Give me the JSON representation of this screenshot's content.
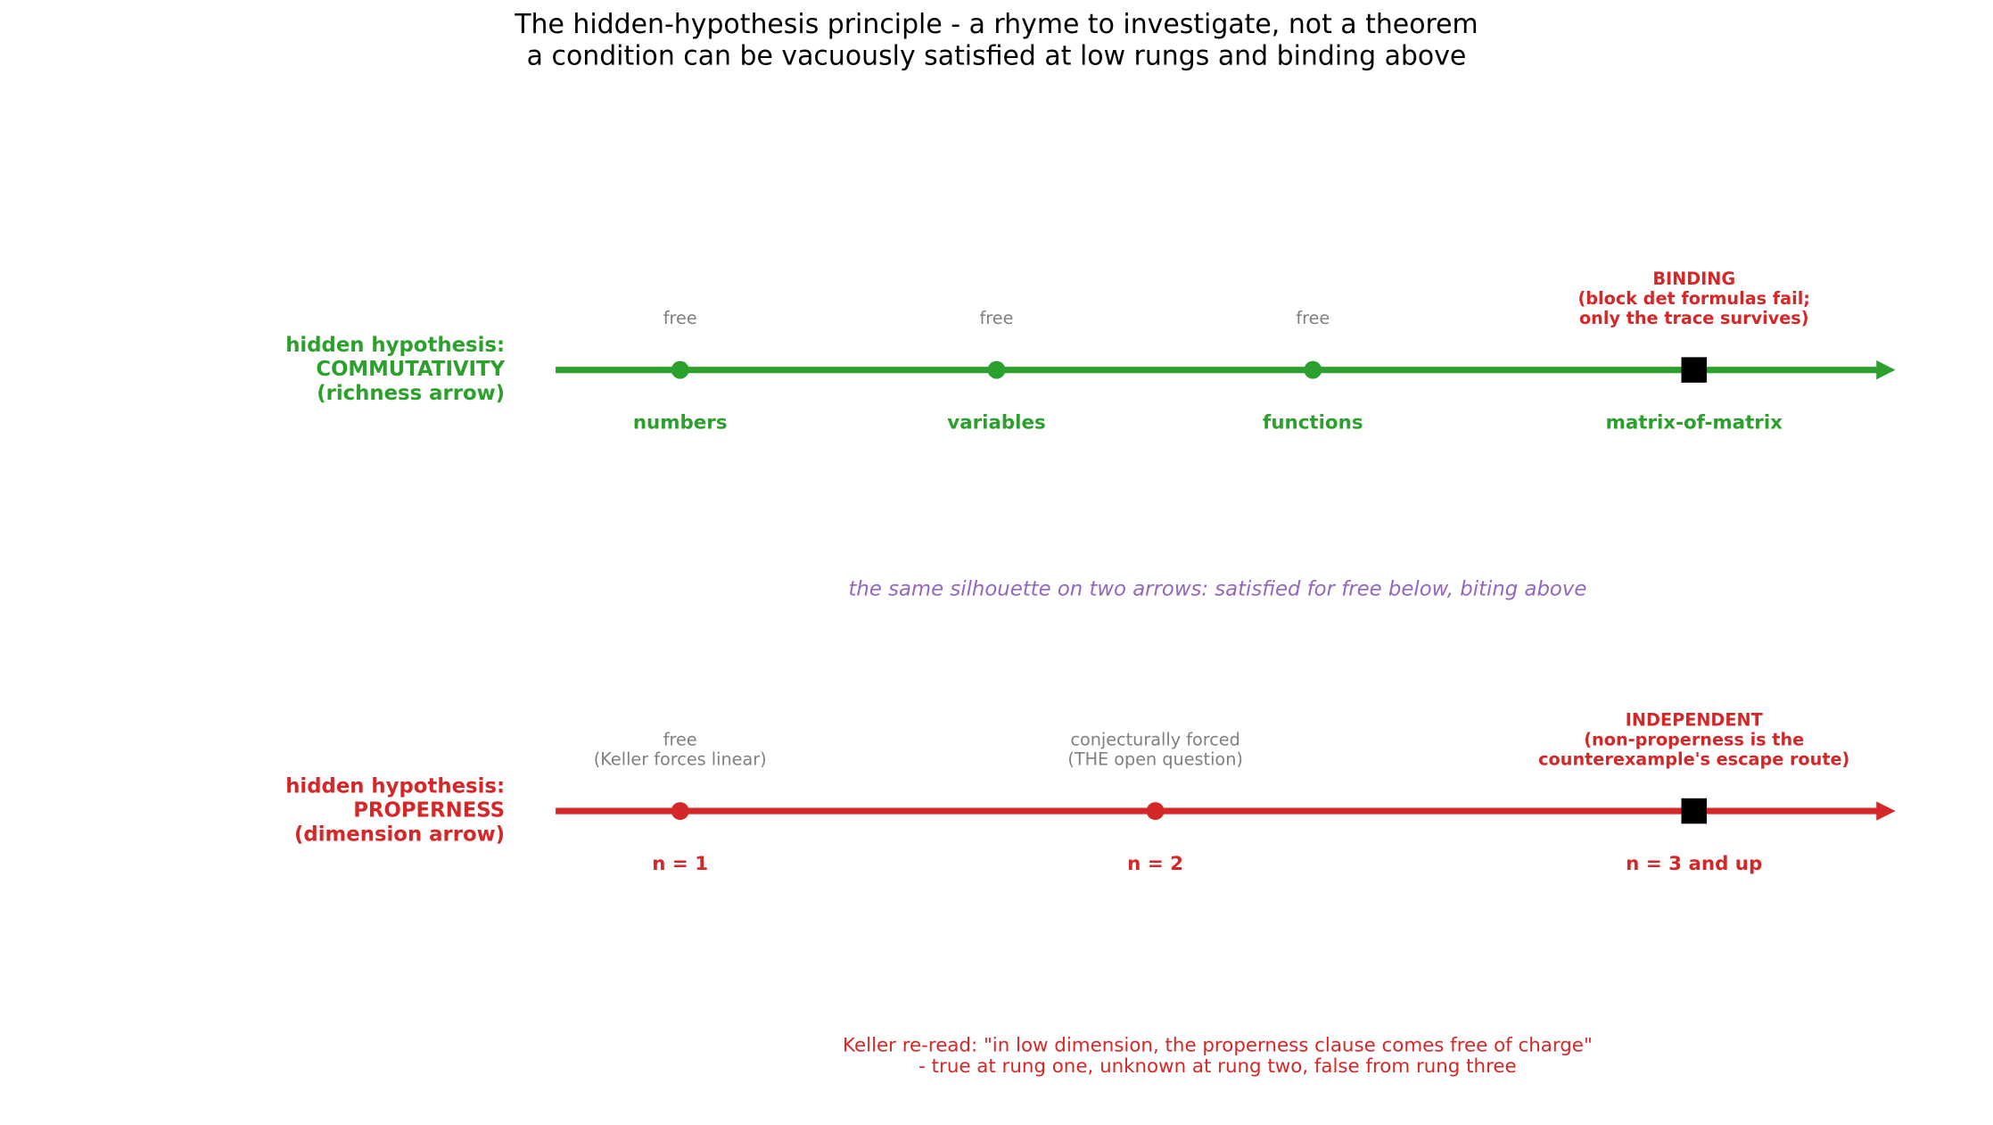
{
  "title": [
    "The hidden-hypothesis principle - a rhyme to investigate, not a theorem",
    "a condition can be vacuously satisfied at low rungs and binding above"
  ],
  "arrows": [
    {
      "label": [
        "hidden hypothesis:",
        "COMMUTATIVITY",
        "(richness arrow)"
      ],
      "color": "#2ca02c",
      "nodes": [
        {
          "name": "numbers",
          "note": [
            "free"
          ]
        },
        {
          "name": "variables",
          "note": [
            "free"
          ]
        },
        {
          "name": "functions",
          "note": [
            "free"
          ]
        },
        {
          "name": "matrix-of-matrix",
          "note": [
            "BINDING",
            "(block det formulas fail;",
            "only the trace survives)"
          ]
        }
      ]
    },
    {
      "label": [
        "hidden hypothesis:",
        "PROPERNESS",
        "(dimension arrow)"
      ],
      "color": "#d62728",
      "nodes": [
        {
          "name": "n = 1",
          "note": [
            "free",
            "(Keller forces linear)"
          ]
        },
        {
          "name": "n = 2",
          "note": [
            "conjecturally forced",
            "(THE open question)"
          ]
        },
        {
          "name": "n = 3 and up",
          "note": [
            "INDEPENDENT",
            "(non-properness is the",
            "counterexample's escape route)"
          ]
        }
      ]
    }
  ],
  "caption": "the same silhouette on two arrows: satisfied for free below, biting above",
  "footnote": [
    "Keller re-read: \"in low dimension, the properness clause comes free of charge\"",
    "- true at rung one, unknown at rung two, false from rung three"
  ]
}
